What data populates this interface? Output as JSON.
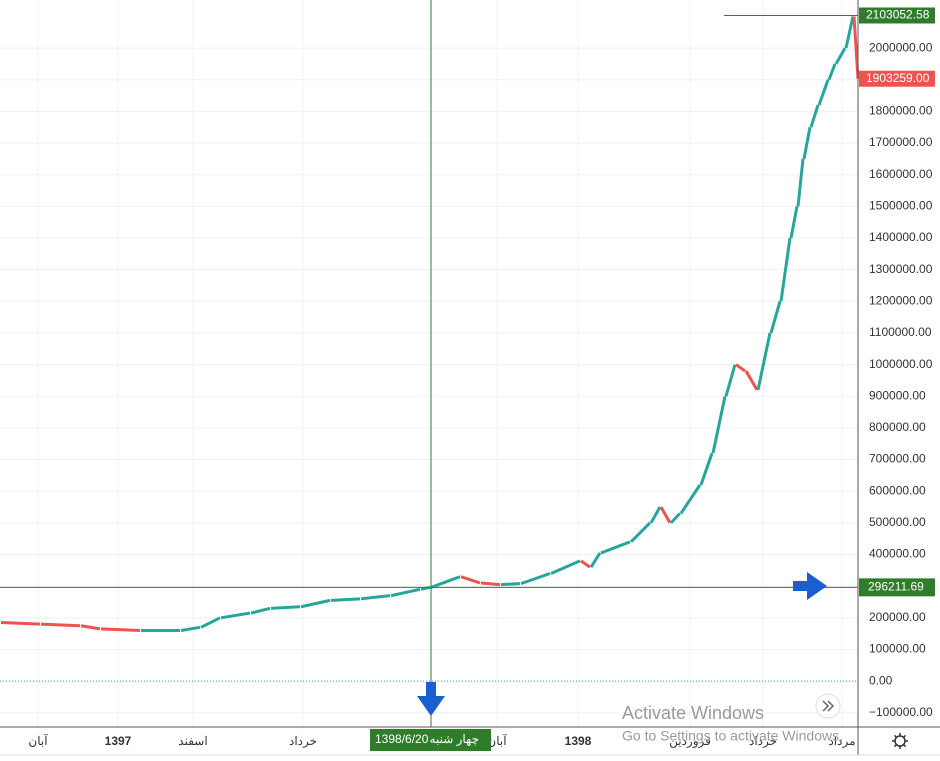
{
  "chart_data": {
    "type": "candlestick",
    "x": [
      0,
      4,
      8,
      10,
      14,
      18,
      20,
      22,
      25,
      27,
      30,
      33,
      36,
      39,
      42,
      43,
      46,
      48,
      50,
      52,
      55,
      58,
      59,
      60,
      63,
      65,
      66,
      67,
      68,
      70,
      71.2,
      72.5,
      73.5,
      74.5,
      75.7,
      77,
      78,
      79,
      79.7,
      80.3,
      81,
      81.8,
      82.8,
      83.5,
      84.5,
      85.3,
      85.8
    ],
    "values": [
      185000,
      180000,
      175000,
      165000,
      160000,
      160000,
      170000,
      200000,
      215000,
      230000,
      235000,
      255000,
      260000,
      270000,
      290000,
      296000,
      330000,
      310000,
      305000,
      308000,
      340000,
      380000,
      360000,
      405000,
      440000,
      500000,
      550000,
      500000,
      530000,
      620000,
      720000,
      900000,
      1000000,
      980000,
      920000,
      1100000,
      1200000,
      1400000,
      1500000,
      1650000,
      1750000,
      1820000,
      1900000,
      1950000,
      2000000,
      2100000,
      1903259
    ],
    "up_color": "#26a69a",
    "down_color": "#ef5350",
    "xlim": [
      0,
      85.8
    ],
    "ylim": [
      -145000,
      2152000
    ],
    "yticks": [
      {
        "value": -100000,
        "label": "−100000.00"
      },
      {
        "value": 0,
        "label": "0.00"
      },
      {
        "value": 100000,
        "label": "100000.00"
      },
      {
        "value": 200000,
        "label": "200000.00"
      },
      {
        "value": 300000,
        "label": "300000.00"
      },
      {
        "value": 400000,
        "label": "400000.00"
      },
      {
        "value": 500000,
        "label": "500000.00"
      },
      {
        "value": 600000,
        "label": "600000.00"
      },
      {
        "value": 700000,
        "label": "700000.00"
      },
      {
        "value": 800000,
        "label": "800000.00"
      },
      {
        "value": 900000,
        "label": "900000.00"
      },
      {
        "value": 1000000,
        "label": "1000000.00"
      },
      {
        "value": 1100000,
        "label": "1100000.00"
      },
      {
        "value": 1200000,
        "label": "1200000.00"
      },
      {
        "value": 1300000,
        "label": "1300000.00"
      },
      {
        "value": 1400000,
        "label": "1400000.00"
      },
      {
        "value": 1500000,
        "label": "1500000.00"
      },
      {
        "value": 1600000,
        "label": "1600000.00"
      },
      {
        "value": 1700000,
        "label": "1700000.00"
      },
      {
        "value": 1800000,
        "label": "1800000.00"
      },
      {
        "value": 1900000,
        "label": "1900000.00"
      },
      {
        "value": 2000000,
        "label": "2000000.00"
      }
    ],
    "xticks": [
      {
        "value": 3.8,
        "label": "آبان"
      },
      {
        "value": 11.8,
        "label": "1397"
      },
      {
        "value": 19.3,
        "label": "اسفند"
      },
      {
        "value": 30.3,
        "label": "خرداد"
      },
      {
        "value": 49.7,
        "label": "آبان"
      },
      {
        "value": 57.8,
        "label": "1398"
      },
      {
        "value": 69,
        "label": "فروردین"
      },
      {
        "value": 76.3,
        "label": "خرداد"
      },
      {
        "value": 84.2,
        "label": "مرداد"
      }
    ],
    "grid": true,
    "high_price": {
      "value": 2103052.58,
      "label": "2103052.58"
    },
    "last_price": {
      "value": 1903259,
      "label": "1903259.00"
    },
    "crosshair": {
      "x": 43.1,
      "y": 296211.69,
      "y_label": "296211.69",
      "date": "1398/6/20",
      "weekday": "چهار شنبه"
    }
  },
  "watermark": {
    "line1": "Activate Windows",
    "line2": "Go to Settings to activate Windows."
  }
}
